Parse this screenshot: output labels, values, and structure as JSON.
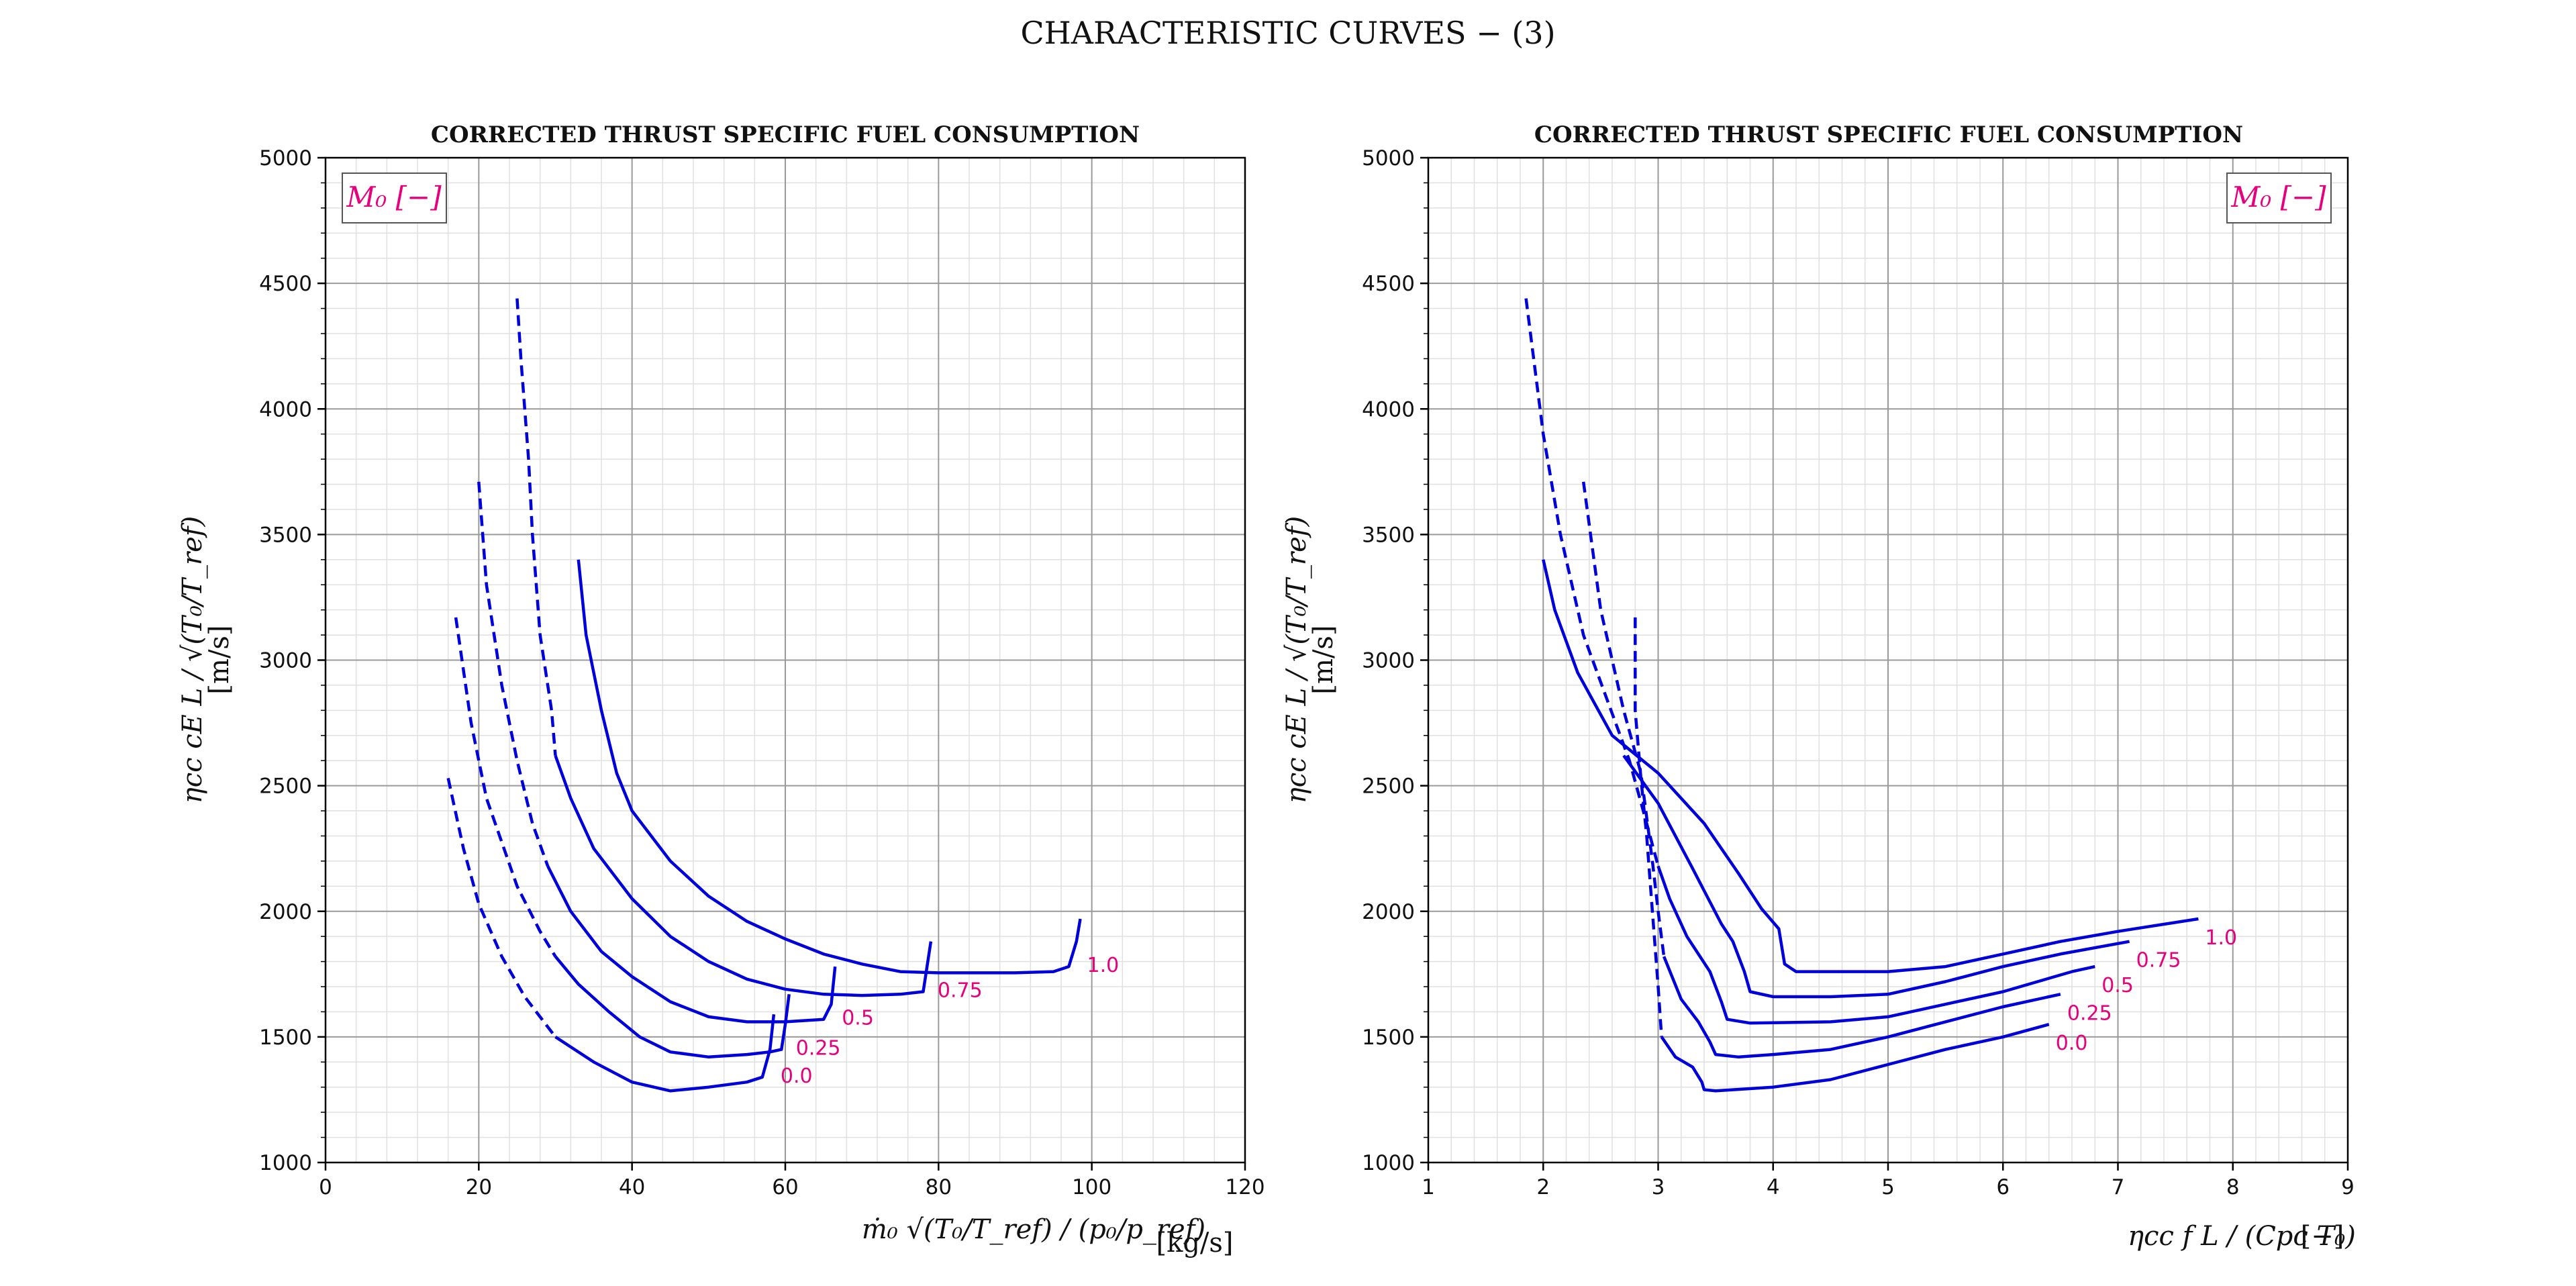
{
  "title": "CHARACTERISTIC CURVES  − (3)",
  "colors": {
    "curve": "#0000dd",
    "label": "#e6007e",
    "grid_major": "#9a9a9a",
    "grid_minor": "#e0e0e0",
    "axis": "#000000"
  },
  "chart_data": [
    {
      "type": "line",
      "title": "CORRECTED THRUST SPECIFIC FUEL CONSUMPTION",
      "xlabel": "ṁ₀ √(T₀/T_ref) / (p₀/p_ref)",
      "xunit": "[kg/s]",
      "ylabel": "ηcc cE L / √(T₀/T_ref)",
      "yunit": "[m/s]",
      "xlim": [
        0,
        120
      ],
      "ylim": [
        1000,
        5000
      ],
      "xticks": [
        0,
        20,
        40,
        60,
        80,
        100,
        120
      ],
      "yticks": [
        1000,
        1500,
        2000,
        2500,
        3000,
        3500,
        4000,
        4500,
        5000
      ],
      "grid": true,
      "legend_title": "M₀ [−]",
      "legend_position": "top-left",
      "series": [
        {
          "name": "0.0",
          "dashed": [
            [
              16,
              2530
            ],
            [
              18,
              2250
            ],
            [
              20,
              2030
            ],
            [
              23,
              1820
            ],
            [
              26,
              1660
            ],
            [
              30,
              1500
            ]
          ],
          "solid": [
            [
              30,
              1500
            ],
            [
              35,
              1400
            ],
            [
              40,
              1320
            ],
            [
              45,
              1285
            ],
            [
              50,
              1300
            ],
            [
              55,
              1320
            ],
            [
              57,
              1340
            ],
            [
              58,
              1450
            ],
            [
              58.5,
              1590
            ]
          ]
        },
        {
          "name": "0.25",
          "dashed": [
            [
              17,
              3170
            ],
            [
              19,
              2750
            ],
            [
              21,
              2450
            ],
            [
              25,
              2100
            ],
            [
              28,
              1920
            ],
            [
              30,
              1820
            ]
          ],
          "solid": [
            [
              30,
              1820
            ],
            [
              33,
              1710
            ],
            [
              37,
              1600
            ],
            [
              41,
              1500
            ],
            [
              45,
              1440
            ],
            [
              50,
              1420
            ],
            [
              55,
              1430
            ],
            [
              58,
              1440
            ],
            [
              59.5,
              1450
            ],
            [
              60,
              1550
            ],
            [
              60.5,
              1670
            ]
          ]
        },
        {
          "name": "0.5",
          "dashed": [
            [
              20,
              3710
            ],
            [
              21,
              3300
            ],
            [
              23,
              2900
            ],
            [
              25,
              2600
            ],
            [
              27,
              2350
            ],
            [
              29,
              2180
            ]
          ],
          "solid": [
            [
              29,
              2180
            ],
            [
              32,
              2000
            ],
            [
              36,
              1840
            ],
            [
              40,
              1740
            ],
            [
              45,
              1640
            ],
            [
              50,
              1580
            ],
            [
              55,
              1560
            ],
            [
              60,
              1560
            ],
            [
              65,
              1570
            ],
            [
              66,
              1630
            ],
            [
              66.5,
              1780
            ]
          ]
        },
        {
          "name": "0.75",
          "dashed": [
            [
              25,
              4440
            ],
            [
              25.5,
              4200
            ],
            [
              26.5,
              3800
            ],
            [
              27,
              3500
            ],
            [
              28,
              3100
            ],
            [
              29.5,
              2800
            ],
            [
              30,
              2620
            ]
          ],
          "solid": [
            [
              30,
              2620
            ],
            [
              32,
              2450
            ],
            [
              35,
              2250
            ],
            [
              40,
              2050
            ],
            [
              45,
              1900
            ],
            [
              50,
              1800
            ],
            [
              55,
              1730
            ],
            [
              60,
              1690
            ],
            [
              65,
              1670
            ],
            [
              70,
              1665
            ],
            [
              75,
              1670
            ],
            [
              78,
              1680
            ],
            [
              78.5,
              1780
            ],
            [
              79,
              1880
            ]
          ]
        },
        {
          "name": "1.0",
          "dashed": [],
          "solid": [
            [
              33,
              3400
            ],
            [
              34,
              3100
            ],
            [
              36,
              2800
            ],
            [
              38,
              2550
            ],
            [
              40,
              2400
            ],
            [
              45,
              2200
            ],
            [
              50,
              2060
            ],
            [
              55,
              1960
            ],
            [
              60,
              1890
            ],
            [
              65,
              1830
            ],
            [
              70,
              1790
            ],
            [
              75,
              1760
            ],
            [
              80,
              1755
            ],
            [
              90,
              1755
            ],
            [
              95,
              1760
            ],
            [
              97,
              1780
            ],
            [
              98,
              1880
            ],
            [
              98.5,
              1970
            ]
          ]
        }
      ]
    },
    {
      "type": "line",
      "title": "CORRECTED THRUST SPECIFIC FUEL CONSUMPTION",
      "xlabel": "ηcc f L / (Cpc T₀)",
      "xunit": "[−]",
      "ylabel": "ηcc cE L / √(T₀/T_ref)",
      "yunit": "[m/s]",
      "xlim": [
        1,
        9
      ],
      "ylim": [
        1000,
        5000
      ],
      "xticks": [
        1,
        2,
        3,
        4,
        5,
        6,
        7,
        8,
        9
      ],
      "yticks": [
        1000,
        1500,
        2000,
        2500,
        3000,
        3500,
        4000,
        4500,
        5000
      ],
      "grid": true,
      "legend_title": "M₀ [−]",
      "legend_position": "top-right",
      "series": [
        {
          "name": "0.0",
          "dashed": [
            [
              2.8,
              3170
            ],
            [
              2.8,
              2800
            ],
            [
              2.85,
              2530
            ],
            [
              2.9,
              2300
            ],
            [
              2.95,
              2000
            ],
            [
              3.0,
              1700
            ],
            [
              3.03,
              1500
            ]
          ],
          "solid": [
            [
              3.03,
              1500
            ],
            [
              3.15,
              1420
            ],
            [
              3.3,
              1380
            ],
            [
              3.38,
              1320
            ],
            [
              3.4,
              1290
            ],
            [
              3.5,
              1285
            ],
            [
              4.0,
              1300
            ],
            [
              4.5,
              1330
            ],
            [
              5,
              1390
            ],
            [
              5.5,
              1450
            ],
            [
              6,
              1500
            ],
            [
              6.4,
              1550
            ]
          ]
        },
        {
          "name": "0.25",
          "dashed": [
            [
              2.35,
              3710
            ],
            [
              2.5,
              3200
            ],
            [
              2.7,
              2800
            ],
            [
              2.85,
              2550
            ],
            [
              2.95,
              2200
            ],
            [
              3.0,
              2000
            ],
            [
              3.05,
              1820
            ]
          ],
          "solid": [
            [
              3.05,
              1820
            ],
            [
              3.2,
              1650
            ],
            [
              3.35,
              1560
            ],
            [
              3.45,
              1480
            ],
            [
              3.5,
              1430
            ],
            [
              3.7,
              1420
            ],
            [
              4,
              1430
            ],
            [
              4.5,
              1450
            ],
            [
              5,
              1500
            ],
            [
              5.5,
              1560
            ],
            [
              6,
              1620
            ],
            [
              6.5,
              1670
            ]
          ]
        },
        {
          "name": "0.5",
          "dashed": [
            [
              1.85,
              4440
            ],
            [
              2.0,
              3900
            ],
            [
              2.15,
              3500
            ],
            [
              2.35,
              3100
            ],
            [
              2.55,
              2850
            ],
            [
              2.75,
              2600
            ],
            [
              2.9,
              2350
            ],
            [
              3.0,
              2180
            ]
          ],
          "solid": [
            [
              3.0,
              2180
            ],
            [
              3.1,
              2050
            ],
            [
              3.25,
              1900
            ],
            [
              3.45,
              1760
            ],
            [
              3.55,
              1640
            ],
            [
              3.6,
              1570
            ],
            [
              3.8,
              1555
            ],
            [
              4.5,
              1560
            ],
            [
              5,
              1580
            ],
            [
              5.5,
              1630
            ],
            [
              6,
              1680
            ],
            [
              6.6,
              1760
            ],
            [
              6.8,
              1780
            ]
          ]
        },
        {
          "name": "0.75",
          "dashed": [],
          "solid": [
            [
              2.7,
              2620
            ],
            [
              3.0,
              2430
            ],
            [
              3.3,
              2170
            ],
            [
              3.55,
              1950
            ],
            [
              3.65,
              1880
            ],
            [
              3.75,
              1760
            ],
            [
              3.8,
              1680
            ],
            [
              4.0,
              1660
            ],
            [
              4.5,
              1660
            ],
            [
              5,
              1670
            ],
            [
              5.5,
              1720
            ],
            [
              6,
              1780
            ],
            [
              6.5,
              1830
            ],
            [
              7.1,
              1880
            ]
          ]
        },
        {
          "name": "1.0",
          "dashed": [],
          "solid": [
            [
              2.0,
              3400
            ],
            [
              2.1,
              3200
            ],
            [
              2.3,
              2950
            ],
            [
              2.6,
              2700
            ],
            [
              3.0,
              2550
            ],
            [
              3.4,
              2350
            ],
            [
              3.7,
              2150
            ],
            [
              3.9,
              2010
            ],
            [
              4.05,
              1930
            ],
            [
              4.1,
              1790
            ],
            [
              4.2,
              1760
            ],
            [
              5,
              1760
            ],
            [
              5.5,
              1780
            ],
            [
              6,
              1830
            ],
            [
              6.5,
              1880
            ],
            [
              7,
              1920
            ],
            [
              7.7,
              1970
            ]
          ]
        }
      ]
    }
  ]
}
